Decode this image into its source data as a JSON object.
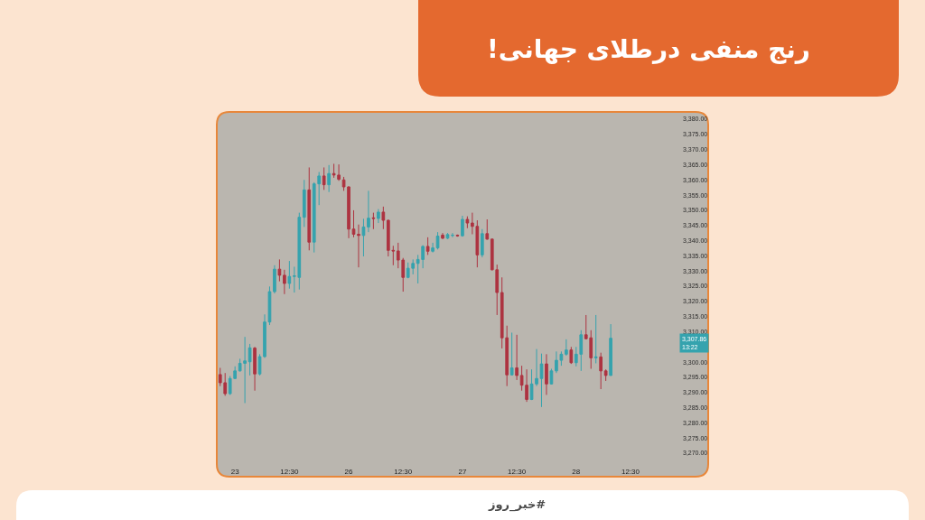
{
  "chart_data": {
    "type": "candlestick",
    "title": "رنج منفی درطلای جهانی!",
    "categories": [
      null,
      null,
      null,
      "23",
      null,
      null,
      null,
      null,
      null,
      null,
      null,
      null,
      null,
      null,
      "12:30",
      null,
      null,
      null,
      null,
      null,
      null,
      null,
      null,
      null,
      null,
      null,
      "26",
      null,
      null,
      null,
      null,
      null,
      null,
      null,
      null,
      null,
      null,
      "12:30",
      null,
      null,
      null,
      null,
      null,
      null,
      null,
      null,
      null,
      null,
      null,
      "27",
      null,
      null,
      null,
      null,
      null,
      null,
      null,
      null,
      null,
      null,
      "12:30",
      null,
      null,
      null,
      null,
      null,
      null,
      null,
      null,
      null,
      null,
      null,
      "28",
      null,
      null,
      null,
      null,
      null,
      null,
      null,
      null,
      null,
      null,
      "12:30",
      null,
      null,
      null,
      null,
      null,
      null,
      null,
      null,
      null
    ],
    "ohlc": [
      [
        3295.9,
        3298.1,
        3292.1,
        3293.2
      ],
      [
        3293.2,
        3296.4,
        3288.9,
        3289.6
      ],
      [
        3289.6,
        3295.4,
        3289.2,
        3294.6
      ],
      [
        3294.6,
        3298.6,
        3294.4,
        3297.1
      ],
      [
        3297.1,
        3301.1,
        3296.9,
        3299.6
      ],
      [
        3299.6,
        3308.3,
        3286.5,
        3300.4
      ],
      [
        3300.1,
        3306.0,
        3295.6,
        3304.7
      ],
      [
        3304.6,
        3305.0,
        3290.6,
        3296.1
      ],
      [
        3296.1,
        3302.6,
        3295.6,
        3301.8
      ],
      [
        3301.8,
        3315.7,
        3301.4,
        3313.2
      ],
      [
        3313.2,
        3324.9,
        3312.2,
        3323.2
      ],
      [
        3323.2,
        3331.9,
        3322.6,
        3330.6
      ],
      [
        3330.6,
        3333.8,
        3326.6,
        3328.6
      ],
      [
        3328.6,
        3330.4,
        3322.4,
        3325.9
      ],
      [
        3325.9,
        3333.3,
        3324.2,
        3328.2
      ],
      [
        3328.2,
        3331.4,
        3322.9,
        3328.4
      ],
      [
        3327.9,
        3349.2,
        3323.9,
        3347.7
      ],
      [
        3347.7,
        3360.0,
        3344.5,
        3356.7
      ],
      [
        3356.7,
        3364.1,
        3336.8,
        3339.5
      ],
      [
        3339.5,
        3359.2,
        3336.1,
        3358.7
      ],
      [
        3358.7,
        3362.6,
        3351.7,
        3361.3
      ],
      [
        3361.3,
        3364.1,
        3356.7,
        3358.4
      ],
      [
        3358.4,
        3364.9,
        3356.0,
        3362.1
      ],
      [
        3362.1,
        3365.3,
        3360.7,
        3361.6
      ],
      [
        3361.6,
        3365.1,
        3359.7,
        3360.2
      ],
      [
        3360.0,
        3361.0,
        3356.4,
        3357.7
      ],
      [
        3357.7,
        3357.9,
        3340.8,
        3343.8
      ],
      [
        3343.8,
        3350.0,
        3341.1,
        3342.1
      ],
      [
        3342.1,
        3345.3,
        3331.2,
        3341.7
      ],
      [
        3341.7,
        3347.2,
        3334.8,
        3344.5
      ],
      [
        3344.5,
        3356.4,
        3342.8,
        3347.4
      ],
      [
        3347.5,
        3349.2,
        3343.8,
        3347.3
      ],
      [
        3347.3,
        3350.4,
        3345.8,
        3349.4
      ],
      [
        3349.4,
        3351.2,
        3343.8,
        3346.7
      ],
      [
        3346.7,
        3346.9,
        3334.8,
        3336.8
      ],
      [
        3336.8,
        3338.3,
        3331.9,
        3336.6
      ],
      [
        3336.6,
        3339.3,
        3330.9,
        3333.6
      ],
      [
        3333.6,
        3334.3,
        3323.2,
        3327.9
      ],
      [
        3327.9,
        3332.8,
        3327.6,
        3330.9
      ],
      [
        3330.9,
        3333.8,
        3328.9,
        3332.5
      ],
      [
        3332.5,
        3335.3,
        3325.9,
        3333.8
      ],
      [
        3333.8,
        3338.5,
        3330.9,
        3338.1
      ],
      [
        3338.1,
        3341.1,
        3335.3,
        3336.5
      ],
      [
        3336.5,
        3339.3,
        3336.1,
        3337.6
      ],
      [
        3337.6,
        3342.8,
        3337.1,
        3341.5
      ],
      [
        3341.8,
        3342.5,
        3340.5,
        3340.8
      ],
      [
        3340.8,
        3342.5,
        3340.5,
        3342.0
      ],
      [
        3341.7,
        3342.5,
        3341.1,
        3341.8
      ],
      [
        3341.8,
        3342.0,
        3341.3,
        3341.6
      ],
      [
        3341.6,
        3348.2,
        3341.3,
        3347.0
      ],
      [
        3347.0,
        3348.0,
        3344.1,
        3345.8
      ],
      [
        3345.8,
        3349.2,
        3342.1,
        3344.7
      ],
      [
        3344.7,
        3346.7,
        3331.2,
        3335.3
      ],
      [
        3335.3,
        3343.8,
        3334.5,
        3342.3
      ],
      [
        3342.3,
        3347.0,
        3340.3,
        3340.5
      ],
      [
        3340.5,
        3340.6,
        3330.2,
        3330.4
      ],
      [
        3330.4,
        3332.1,
        3315.5,
        3322.9
      ],
      [
        3322.9,
        3327.9,
        3304.5,
        3308.0
      ],
      [
        3308.0,
        3312.0,
        3292.1,
        3295.8
      ],
      [
        3295.8,
        3309.7,
        3295.6,
        3298.1
      ],
      [
        3298.1,
        3309.0,
        3294.1,
        3295.6
      ],
      [
        3295.6,
        3298.8,
        3290.6,
        3292.4
      ],
      [
        3292.4,
        3297.6,
        3286.9,
        3287.7
      ],
      [
        3287.7,
        3297.6,
        3287.5,
        3292.8
      ],
      [
        3292.8,
        3304.3,
        3292.1,
        3294.6
      ],
      [
        3294.6,
        3302.8,
        3285.2,
        3299.4
      ],
      [
        3299.4,
        3302.6,
        3289.2,
        3292.8
      ],
      [
        3292.8,
        3297.8,
        3292.6,
        3297.1
      ],
      [
        3297.1,
        3303.5,
        3296.4,
        3300.6
      ],
      [
        3300.6,
        3303.5,
        3298.8,
        3302.6
      ],
      [
        3302.6,
        3307.5,
        3302.1,
        3304.0
      ],
      [
        3304.0,
        3305.0,
        3299.4,
        3299.8
      ],
      [
        3299.8,
        3305.0,
        3298.6,
        3302.6
      ],
      [
        3302.6,
        3310.5,
        3297.1,
        3309.0
      ],
      [
        3309.0,
        3315.5,
        3307.5,
        3307.7
      ],
      [
        3308.0,
        3310.5,
        3297.8,
        3301.4
      ],
      [
        3301.4,
        3315.5,
        3299.6,
        3301.7
      ],
      [
        3301.7,
        3303.1,
        3291.1,
        3297.1
      ],
      [
        3297.1,
        3297.6,
        3293.8,
        3295.6
      ],
      [
        3295.6,
        3312.5,
        3295.5,
        3307.86
      ],
      null,
      null,
      null,
      null,
      null,
      null,
      null,
      null,
      null,
      null,
      null,
      null,
      null
    ],
    "colors": [
      "#ad3340",
      "#ad3340",
      "#35a3ae",
      "#35a3ae",
      "#35a3ae",
      "#35a3ae",
      "#35a3ae",
      "#ad3340",
      "#35a3ae",
      "#35a3ae",
      "#35a3ae",
      "#35a3ae",
      "#ad3340",
      "#ad3340",
      "#35a3ae",
      "#35a3ae",
      "#35a3ae",
      "#35a3ae",
      "#ad3340",
      "#35a3ae",
      "#35a3ae",
      "#ad3340",
      "#35a3ae",
      "#ad3340",
      "#ad3340",
      "#ad3340",
      "#ad3340",
      "#ad3340",
      "#ad3340",
      "#35a3ae",
      "#35a3ae",
      "#ad3340",
      "#35a3ae",
      "#ad3340",
      "#ad3340",
      "#ad3340",
      "#ad3340",
      "#ad3340",
      "#35a3ae",
      "#35a3ae",
      "#35a3ae",
      "#35a3ae",
      "#ad3340",
      "#35a3ae",
      "#35a3ae",
      "#ad3340",
      "#35a3ae",
      "#35a3ae",
      "#ad3340",
      "#35a3ae",
      "#ad3340",
      "#ad3340",
      "#ad3340",
      "#35a3ae",
      "#ad3340",
      "#ad3340",
      "#ad3340",
      "#ad3340",
      "#ad3340",
      "#35a3ae",
      "#ad3340",
      "#ad3340",
      "#ad3340",
      "#35a3ae",
      "#35a3ae",
      "#35a3ae",
      "#ad3340",
      "#35a3ae",
      "#35a3ae",
      "#35a3ae",
      "#35a3ae",
      "#ad3340",
      "#35a3ae",
      "#35a3ae",
      "#ad3340",
      "#ad3340",
      "#35a3ae",
      "#ad3340",
      "#ad3340",
      "#35a3ae",
      null,
      null,
      null,
      null,
      null,
      null,
      null,
      null,
      null,
      null,
      null,
      null,
      null
    ],
    "ylim": [
      3270,
      3380
    ],
    "yticks": [
      {
        "value": 3270,
        "label": "3,270.00"
      },
      {
        "value": 3275,
        "label": "3,275.00"
      },
      {
        "value": 3280,
        "label": "3,280.00"
      },
      {
        "value": 3285,
        "label": "3,285.00"
      },
      {
        "value": 3290,
        "label": "3,290.00"
      },
      {
        "value": 3295,
        "label": "3,295.00"
      },
      {
        "value": 3300,
        "label": "3,300.00"
      },
      {
        "value": 3310,
        "label": "3,310.00"
      },
      {
        "value": 3315,
        "label": "3,315.00"
      },
      {
        "value": 3320,
        "label": "3,320.00"
      },
      {
        "value": 3325,
        "label": "3,325.00"
      },
      {
        "value": 3330,
        "label": "3,330.00"
      },
      {
        "value": 3335,
        "label": "3,335.00"
      },
      {
        "value": 3340,
        "label": "3,340.00"
      },
      {
        "value": 3345,
        "label": "3,345.00"
      },
      {
        "value": 3350,
        "label": "3,350.00"
      },
      {
        "value": 3355,
        "label": "3,355.00"
      },
      {
        "value": 3360,
        "label": "3,360.00"
      },
      {
        "value": 3365,
        "label": "3,365.00"
      },
      {
        "value": 3370,
        "label": "3,370.00"
      },
      {
        "value": 3375,
        "label": "3,375.00"
      },
      {
        "value": 3380,
        "label": "3,380.00"
      }
    ],
    "annotations": [
      "3,307.86\n13:22",
      "#خبر_روز"
    ]
  }
}
